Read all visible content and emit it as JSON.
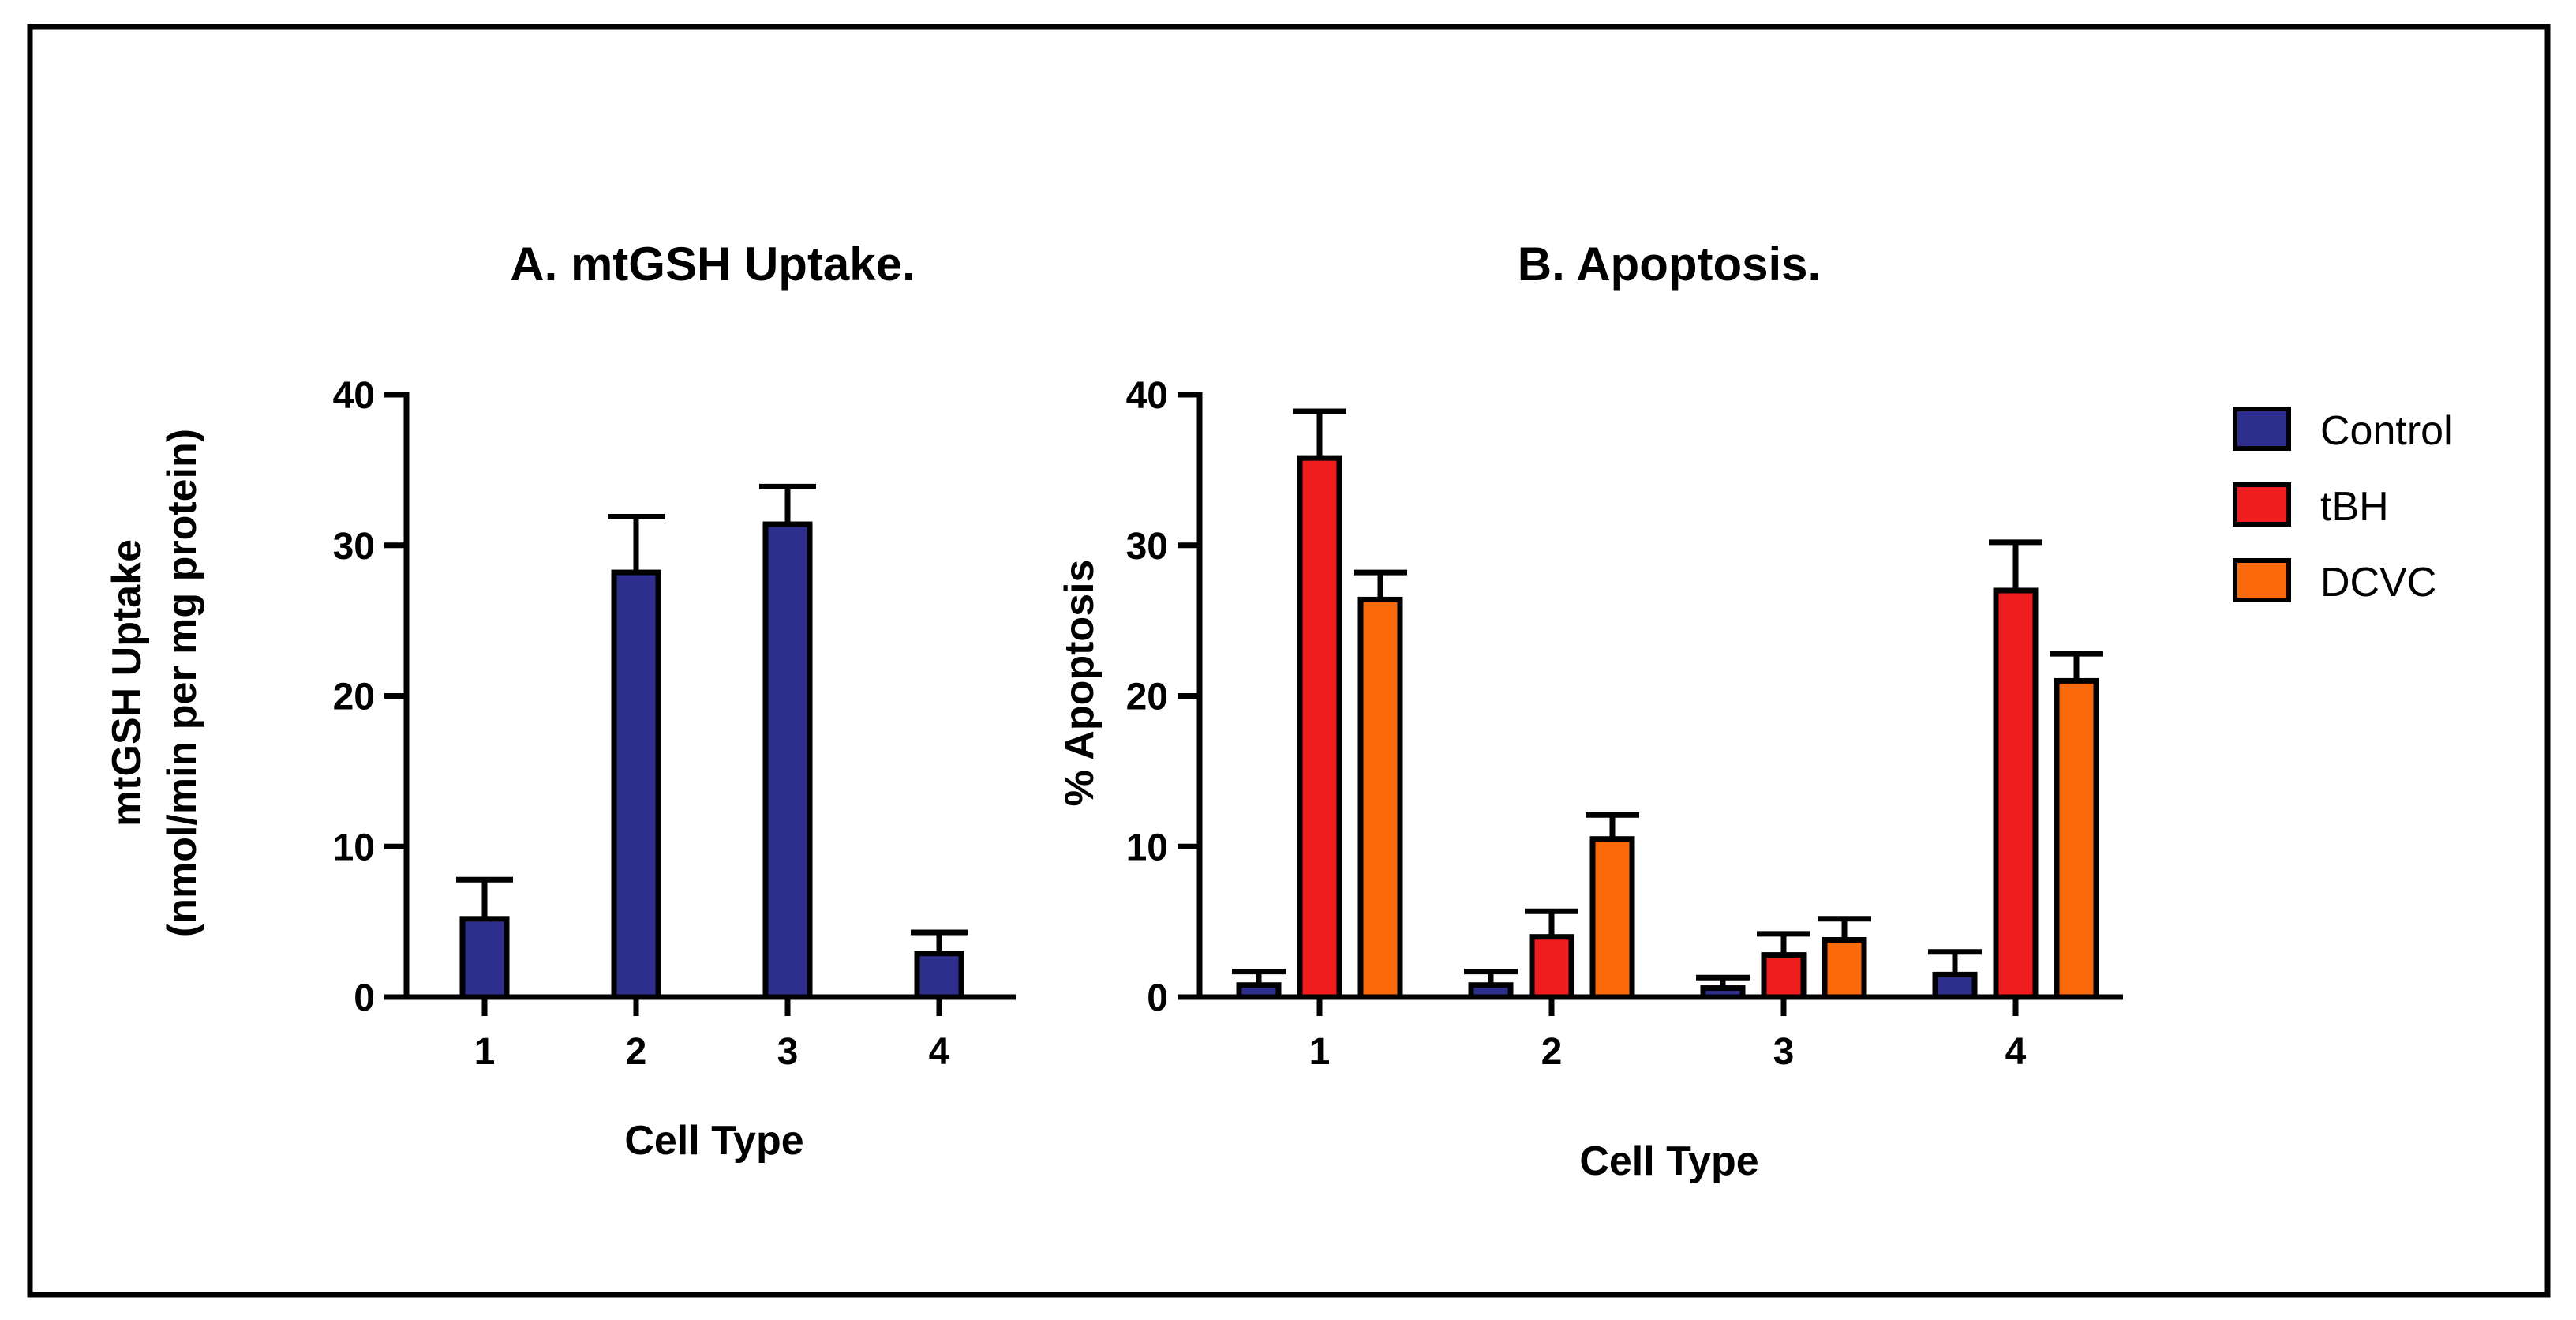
{
  "chart_data": [
    {
      "type": "bar",
      "title": "A. mtGSH Uptake.",
      "xlabel": "Cell Type",
      "ylabel": [
        "mtGSH Uptake",
        "(nmol/min per mg protein)"
      ],
      "ylim": [
        0,
        40
      ],
      "yticks": [
        0,
        10,
        20,
        30,
        40
      ],
      "categories": [
        "1",
        "2",
        "3",
        "4"
      ],
      "series": [
        {
          "name": "Control",
          "color": "#2e2e8f",
          "values": [
            5.2,
            28.2,
            31.4,
            2.9
          ],
          "errors": [
            2.6,
            3.7,
            2.5,
            1.4
          ]
        }
      ]
    },
    {
      "type": "bar",
      "title": "B. Apoptosis.",
      "xlabel": "Cell Type",
      "ylabel": [
        "% Apoptosis"
      ],
      "ylim": [
        0,
        40
      ],
      "yticks": [
        0,
        10,
        20,
        30,
        40
      ],
      "categories": [
        "1",
        "2",
        "3",
        "4"
      ],
      "series": [
        {
          "name": "Control",
          "color": "#2e2e8f",
          "values": [
            0.8,
            0.8,
            0.6,
            1.5
          ],
          "errors": [
            0.9,
            0.9,
            0.7,
            1.5
          ]
        },
        {
          "name": "tBH",
          "color": "#ef1d1d",
          "values": [
            35.8,
            4.0,
            2.8,
            27.0
          ],
          "errors": [
            3.1,
            1.7,
            1.4,
            3.2
          ]
        },
        {
          "name": "DCVC",
          "color": "#fa6a0a",
          "values": [
            26.4,
            10.5,
            3.8,
            21.0
          ],
          "errors": [
            1.8,
            1.6,
            1.4,
            1.8
          ]
        }
      ],
      "legend": [
        "Control",
        "tBH",
        "DCVC"
      ],
      "legend_position": "right"
    }
  ]
}
